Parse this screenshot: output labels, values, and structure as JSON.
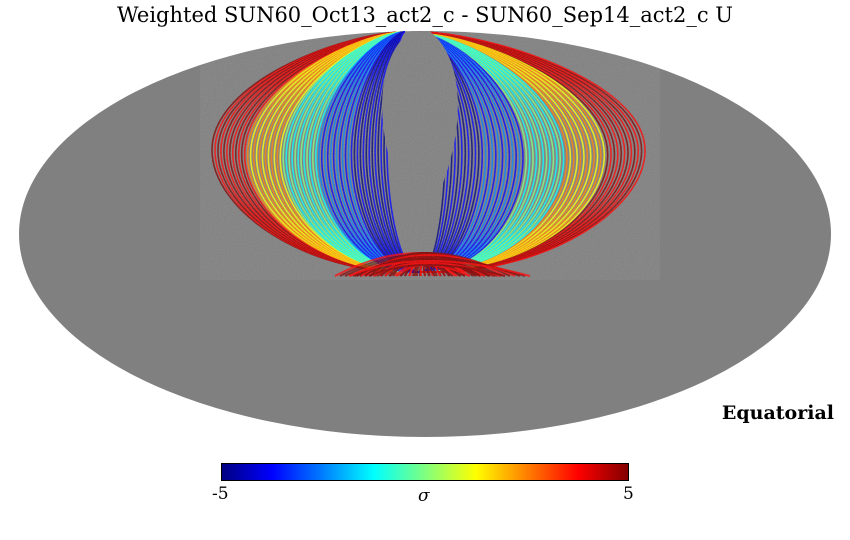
{
  "title": "Weighted SUN60_Oct13_act2_c - SUN60_Sep14_act2_c U",
  "coordinate_system": "Equatorial",
  "projection": "mollweide",
  "colorbar": {
    "min_label": "-5",
    "max_label": "5",
    "unit_label": "σ",
    "colormap": "jet",
    "colors": [
      "#00007f",
      "#0000ff",
      "#007fff",
      "#00ffff",
      "#7fff7f",
      "#ffff00",
      "#ff7f00",
      "#ff0000",
      "#7f0000"
    ]
  },
  "colors": {
    "masked": "#808080",
    "background": "#ffffff"
  }
}
